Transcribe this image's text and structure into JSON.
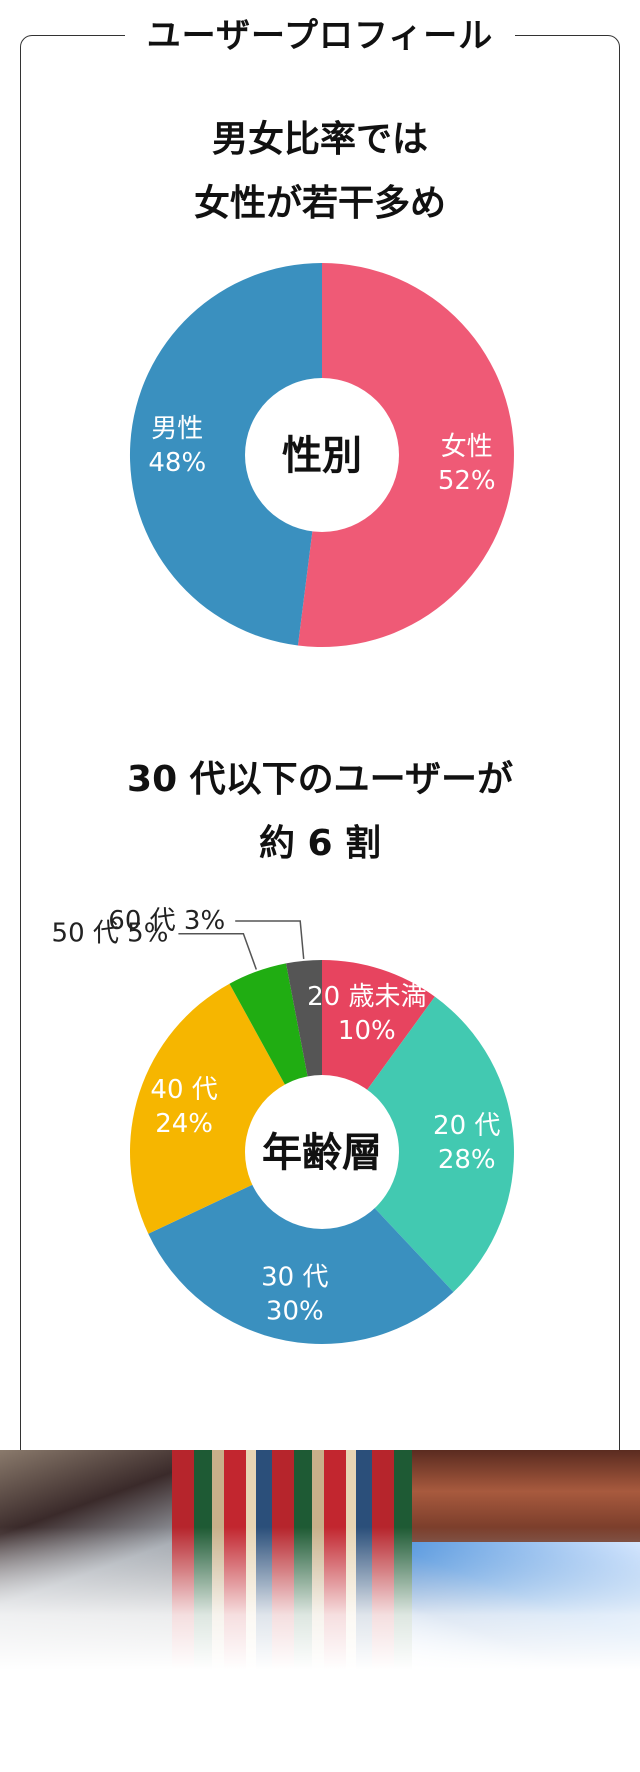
{
  "section": {
    "title": "ユーザープロフィール"
  },
  "gender": {
    "headline": [
      "男女比率では",
      "女性が若干多め"
    ],
    "center_label": "性別",
    "colors": {
      "female": "#ef5a76",
      "male": "#3a90bf"
    }
  },
  "age": {
    "headline": [
      "30 代以下のユーザーが",
      "約 6 割"
    ],
    "center_label": "年齢層",
    "colors": [
      "#e7445f",
      "#42c9b1",
      "#3a90bf",
      "#f6b600",
      "#20ad12",
      "#555555"
    ]
  },
  "chart_data": [
    {
      "type": "pie",
      "labels": [
        "女性",
        "男性"
      ],
      "values": [
        52,
        48
      ],
      "value_labels": [
        "52%",
        "48%"
      ]
    },
    {
      "type": "pie",
      "labels": [
        "20 歳未満",
        "20 代",
        "30 代",
        "40 代",
        "50 代",
        "60 代"
      ],
      "values": [
        10,
        28,
        30,
        24,
        5,
        3
      ],
      "value_labels": [
        "10%",
        "28%",
        "30%",
        "24%",
        "5%",
        "3%"
      ]
    }
  ]
}
